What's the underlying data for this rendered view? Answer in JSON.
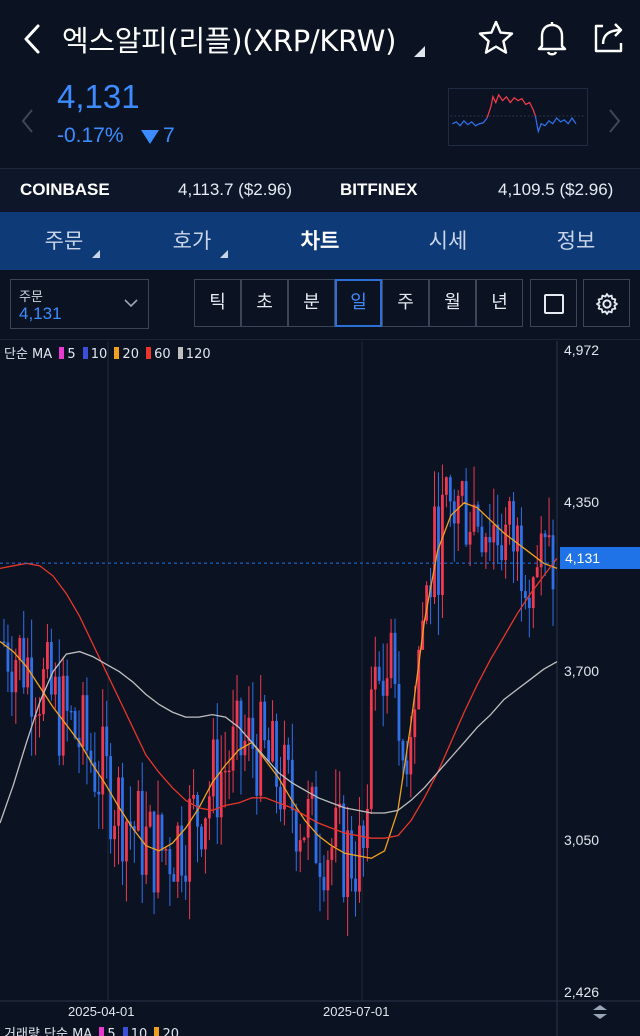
{
  "header": {
    "title": "엑스알피(리플)(XRP/KRW)",
    "back_icon": "chevron-left-icon",
    "icons": [
      "star-icon",
      "bell-icon",
      "share-icon"
    ]
  },
  "price": {
    "current": "4,131",
    "change_pct": "-0.17%",
    "change_abs": "7",
    "color": "#3c8cff"
  },
  "exchanges": [
    {
      "name": "COINBASE",
      "value": "4,113.7 ($2.96)"
    },
    {
      "name": "BITFINEX",
      "value": "4,109.5 ($2.96)"
    }
  ],
  "tabs": [
    {
      "label": "주문",
      "active": false,
      "has_caret": true
    },
    {
      "label": "호가",
      "active": false,
      "has_caret": true
    },
    {
      "label": "차트",
      "active": true,
      "has_caret": false
    },
    {
      "label": "시세",
      "active": false,
      "has_caret": false
    },
    {
      "label": "정보",
      "active": false,
      "has_caret": false
    }
  ],
  "toolbar": {
    "order_label": "주문",
    "order_value": "4,131",
    "timeframes": [
      "틱",
      "초",
      "분",
      "일",
      "주",
      "월",
      "년"
    ],
    "selected_timeframe": "일"
  },
  "chart_data": {
    "type": "line",
    "title": "",
    "legend": "top-left",
    "ma_legend_prefix": "단순 MA",
    "ma_periods": [
      {
        "label": "5",
        "color": "#e83ad0"
      },
      {
        "label": "10",
        "color": "#3d4fd8"
      },
      {
        "label": "20",
        "color": "#f0a020"
      },
      {
        "label": "60",
        "color": "#e8362a"
      },
      {
        "label": "120",
        "color": "#bfbfbf"
      }
    ],
    "y_ticks": [
      "4,972",
      "4,350",
      "3,700",
      "3,050",
      "2,426"
    ],
    "ylim": [
      2426,
      4972
    ],
    "current_price_label": "4,131",
    "current_price": 4131,
    "x_ticks": [
      "2025-04-01",
      "2025-07-01"
    ],
    "candle_up_color": "#f0384f",
    "candle_down_color": "#2f6fe8",
    "series": [
      {
        "name": "20",
        "color": "#f0a020",
        "values": [
          3820,
          3780,
          3720,
          3640,
          3560,
          3490,
          3420,
          3330,
          3250,
          3160,
          3080,
          3010,
          2990,
          3020,
          3080,
          3160,
          3260,
          3330,
          3390,
          3420,
          3350,
          3280,
          3190,
          3110,
          3050,
          3010,
          2980,
          2970,
          2960,
          2990,
          3150,
          3500,
          3900,
          4180,
          4320,
          4370,
          4350,
          4300,
          4250,
          4210,
          4170,
          4130,
          4110
        ]
      },
      {
        "name": "60",
        "color": "#e8362a",
        "values": [
          4110,
          4120,
          4130,
          4120,
          4080,
          4010,
          3920,
          3810,
          3700,
          3590,
          3480,
          3370,
          3300,
          3240,
          3190,
          3160,
          3150,
          3170,
          3180,
          3200,
          3200,
          3180,
          3160,
          3130,
          3100,
          3080,
          3060,
          3050,
          3040,
          3040,
          3050,
          3110,
          3200,
          3300,
          3420,
          3540,
          3650,
          3750,
          3840,
          3930,
          4010,
          4080,
          4150
        ]
      },
      {
        "name": "120",
        "color": "#bfbfbf",
        "values": [
          3100,
          3250,
          3420,
          3580,
          3700,
          3770,
          3780,
          3760,
          3730,
          3700,
          3660,
          3610,
          3570,
          3540,
          3520,
          3520,
          3530,
          3520,
          3480,
          3420,
          3360,
          3300,
          3260,
          3230,
          3200,
          3180,
          3160,
          3150,
          3140,
          3140,
          3150,
          3190,
          3240,
          3300,
          3360,
          3420,
          3480,
          3530,
          3590,
          3630,
          3670,
          3710,
          3740
        ]
      }
    ],
    "candles_range": {
      "low": 2500,
      "high": 4972
    }
  },
  "volume_legend": {
    "prefix": "거래량 단순 MA",
    "periods": [
      {
        "label": "5",
        "color": "#e83ad0"
      },
      {
        "label": "10",
        "color": "#3d4fd8"
      },
      {
        "label": "20",
        "color": "#f0a020"
      }
    ]
  }
}
